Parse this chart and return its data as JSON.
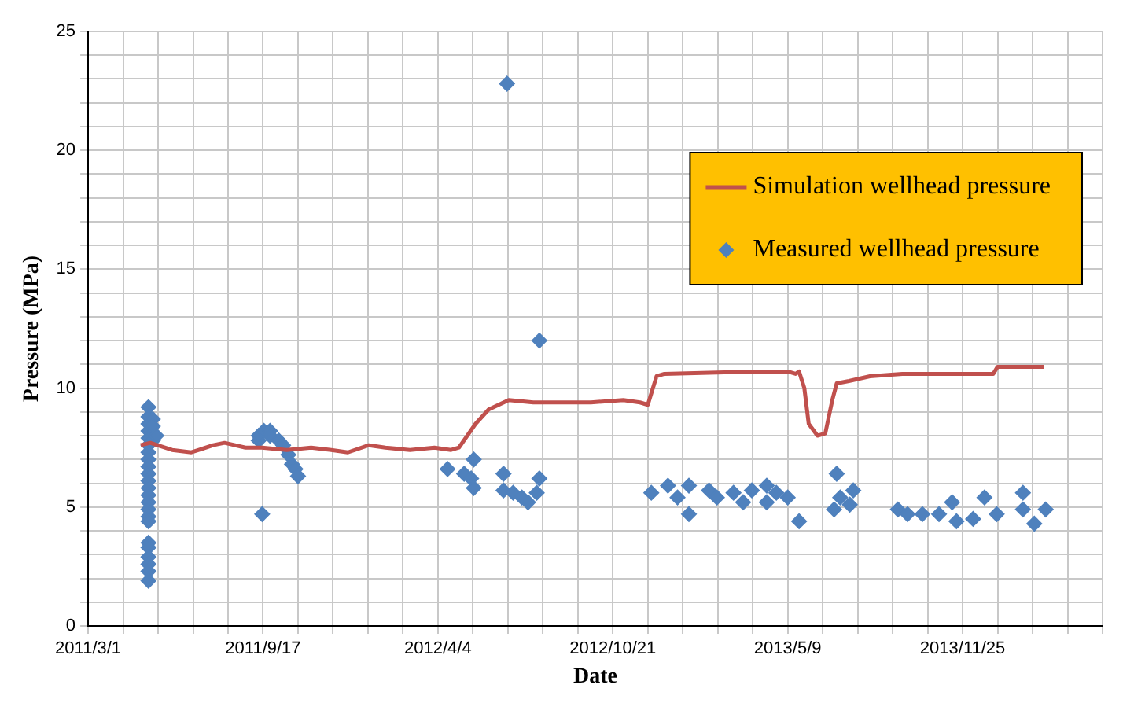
{
  "chart_data": {
    "type": "scatter",
    "xlabel": "Date",
    "ylabel": "Pressure (MPa)",
    "xlim": [
      "2011-03-01",
      "2014-05-04"
    ],
    "xticks": [
      {
        "value": "2011-03-01",
        "label": "2011/3/1"
      },
      {
        "value": "2011-04-10",
        "label": null
      },
      {
        "value": "2011-05-20",
        "label": null
      },
      {
        "value": "2011-06-29",
        "label": null
      },
      {
        "value": "2011-08-08",
        "label": null
      },
      {
        "value": "2011-09-17",
        "label": "2011/9/17"
      },
      {
        "value": "2011-10-27",
        "label": null
      },
      {
        "value": "2011-12-06",
        "label": null
      },
      {
        "value": "2012-01-15",
        "label": null
      },
      {
        "value": "2012-02-24",
        "label": null
      },
      {
        "value": "2012-04-04",
        "label": "2012/4/4"
      },
      {
        "value": "2012-05-14",
        "label": null
      },
      {
        "value": "2012-06-23",
        "label": null
      },
      {
        "value": "2012-08-02",
        "label": null
      },
      {
        "value": "2012-09-11",
        "label": null
      },
      {
        "value": "2012-10-21",
        "label": "2012/10/21"
      },
      {
        "value": "2012-11-30",
        "label": null
      },
      {
        "value": "2013-01-09",
        "label": null
      },
      {
        "value": "2013-02-18",
        "label": null
      },
      {
        "value": "2013-03-30",
        "label": null
      },
      {
        "value": "2013-05-09",
        "label": "2013/5/9"
      },
      {
        "value": "2013-06-18",
        "label": null
      },
      {
        "value": "2013-07-28",
        "label": null
      },
      {
        "value": "2013-09-06",
        "label": null
      },
      {
        "value": "2013-10-16",
        "label": null
      },
      {
        "value": "2013-11-25",
        "label": "2013/11/25"
      },
      {
        "value": "2014-01-04",
        "label": null
      },
      {
        "value": "2014-02-13",
        "label": null
      },
      {
        "value": "2014-03-25",
        "label": null
      },
      {
        "value": "2014-05-04",
        "label": null
      }
    ],
    "ylim": [
      0,
      25
    ],
    "yticks": [
      0,
      {
        "value": 1,
        "label": null
      },
      {
        "value": 2,
        "label": null
      },
      {
        "value": 3,
        "label": null
      },
      {
        "value": 4,
        "label": null
      },
      5,
      {
        "value": 6,
        "label": null
      },
      {
        "value": 7,
        "label": null
      },
      {
        "value": 8,
        "label": null
      },
      {
        "value": 9,
        "label": null
      },
      10,
      {
        "value": 11,
        "label": null
      },
      {
        "value": 12,
        "label": null
      },
      {
        "value": 13,
        "label": null
      },
      {
        "value": 14,
        "label": null
      },
      15,
      {
        "value": 16,
        "label": null
      },
      {
        "value": 17,
        "label": null
      },
      {
        "value": 18,
        "label": null
      },
      {
        "value": 19,
        "label": null
      },
      20,
      {
        "value": 21,
        "label": null
      },
      {
        "value": 22,
        "label": null
      },
      {
        "value": 23,
        "label": null
      },
      {
        "value": 24,
        "label": null
      },
      25
    ],
    "grid": true,
    "legend": "top right",
    "series": [
      {
        "name": "Simulation wellhead pressure",
        "type": "line",
        "marker": "none",
        "color": "#c0504d",
        "x": [
          "2011-04-30",
          "2011-05-11",
          "2011-06-05",
          "2011-06-27",
          "2011-07-22",
          "2011-08-04",
          "2011-08-28",
          "2011-09-16",
          "2011-10-14",
          "2011-11-11",
          "2011-12-04",
          "2011-12-23",
          "2012-01-16",
          "2012-02-04",
          "2012-03-03",
          "2012-03-31",
          "2012-04-19",
          "2012-04-28",
          "2012-05-17",
          "2012-06-01",
          "2012-06-24",
          "2012-07-22",
          "2012-09-26",
          "2012-11-02",
          "2012-11-21",
          "2012-11-30",
          "2012-12-10",
          "2012-12-19",
          "2013-04-01",
          "2013-05-09",
          "2013-05-18",
          "2013-05-22",
          "2013-05-28",
          "2013-06-02",
          "2013-06-12",
          "2013-06-21",
          "2013-06-29",
          "2013-07-04",
          "2013-07-18",
          "2013-08-11",
          "2013-09-17",
          "2013-12-20",
          "2013-12-30",
          "2014-01-04",
          "2014-02-26"
        ],
        "values": [
          7.6,
          7.7,
          7.4,
          7.3,
          7.6,
          7.7,
          7.5,
          7.5,
          7.4,
          7.5,
          7.4,
          7.3,
          7.6,
          7.5,
          7.4,
          7.5,
          7.4,
          7.5,
          8.5,
          9.1,
          9.5,
          9.4,
          9.4,
          9.5,
          9.4,
          9.3,
          10.5,
          10.6,
          10.7,
          10.7,
          10.6,
          10.7,
          10.0,
          8.5,
          8.0,
          8.1,
          9.5,
          10.2,
          10.3,
          10.5,
          10.6,
          10.6,
          10.6,
          10.9,
          10.9
        ]
      },
      {
        "name": "Measured wellhead pressure",
        "marker": "diamond",
        "color": "#4f81bd",
        "x": [
          "2011-05-09",
          "2011-05-09",
          "2011-05-09",
          "2011-05-09",
          "2011-05-09",
          "2011-05-09",
          "2011-05-09",
          "2011-05-09",
          "2011-05-09",
          "2011-05-09",
          "2011-05-09",
          "2011-05-09",
          "2011-05-09",
          "2011-05-09",
          "2011-05-09",
          "2011-05-09",
          "2011-05-09",
          "2011-05-09",
          "2011-05-09",
          "2011-05-09",
          "2011-05-09",
          "2011-05-09",
          "2011-05-09",
          "2011-05-14",
          "2011-05-14",
          "2011-05-14",
          "2011-05-18",
          "2011-09-12",
          "2011-09-12",
          "2011-09-16",
          "2011-09-18",
          "2011-09-25",
          "2011-09-25",
          "2011-10-05",
          "2011-10-10",
          "2011-10-16",
          "2011-10-20",
          "2011-10-24",
          "2011-10-27",
          "2012-04-15",
          "2012-05-04",
          "2012-05-12",
          "2012-05-15",
          "2012-05-15",
          "2012-06-18",
          "2012-06-22",
          "2012-06-18",
          "2012-06-29",
          "2012-07-09",
          "2012-07-16",
          "2012-07-26",
          "2012-07-29",
          "2012-07-29",
          "2012-12-04",
          "2012-12-23",
          "2013-01-03",
          "2013-01-16",
          "2013-01-16",
          "2013-02-08",
          "2013-02-17",
          "2013-03-08",
          "2013-03-19",
          "2013-03-29",
          "2013-04-15",
          "2013-04-15",
          "2013-04-26",
          "2013-05-09",
          "2013-05-22",
          "2013-07-01",
          "2013-07-04",
          "2013-07-08",
          "2013-07-19",
          "2013-07-23",
          "2013-09-12",
          "2013-09-23",
          "2013-10-10",
          "2013-10-29",
          "2013-11-13",
          "2013-11-18",
          "2013-12-07",
          "2013-12-20",
          "2014-01-03",
          "2014-02-02",
          "2014-02-02",
          "2014-02-15",
          "2014-02-28"
        ],
        "values": [
          9.2,
          8.8,
          8.5,
          8.2,
          7.9,
          7.6,
          7.3,
          7.0,
          6.7,
          6.4,
          6.1,
          5.8,
          5.5,
          5.2,
          4.9,
          4.6,
          4.4,
          3.5,
          3.3,
          2.9,
          2.6,
          2.3,
          1.9,
          8.7,
          8.4,
          7.8,
          8.0,
          7.8,
          8.0,
          4.7,
          8.2,
          8.2,
          8.0,
          7.8,
          7.6,
          7.2,
          6.8,
          6.6,
          6.3,
          6.6,
          6.4,
          6.2,
          7.0,
          5.8,
          6.4,
          22.8,
          5.7,
          5.6,
          5.4,
          5.2,
          5.6,
          6.2,
          12.0,
          5.6,
          5.9,
          5.4,
          4.7,
          5.9,
          5.7,
          5.4,
          5.6,
          5.2,
          5.7,
          5.9,
          5.2,
          5.6,
          5.4,
          4.4,
          4.9,
          6.4,
          5.4,
          5.1,
          5.7,
          4.9,
          4.7,
          4.7,
          4.7,
          5.2,
          4.4,
          4.5,
          5.4,
          4.7,
          5.6,
          4.9,
          4.3,
          4.9
        ]
      }
    ]
  }
}
